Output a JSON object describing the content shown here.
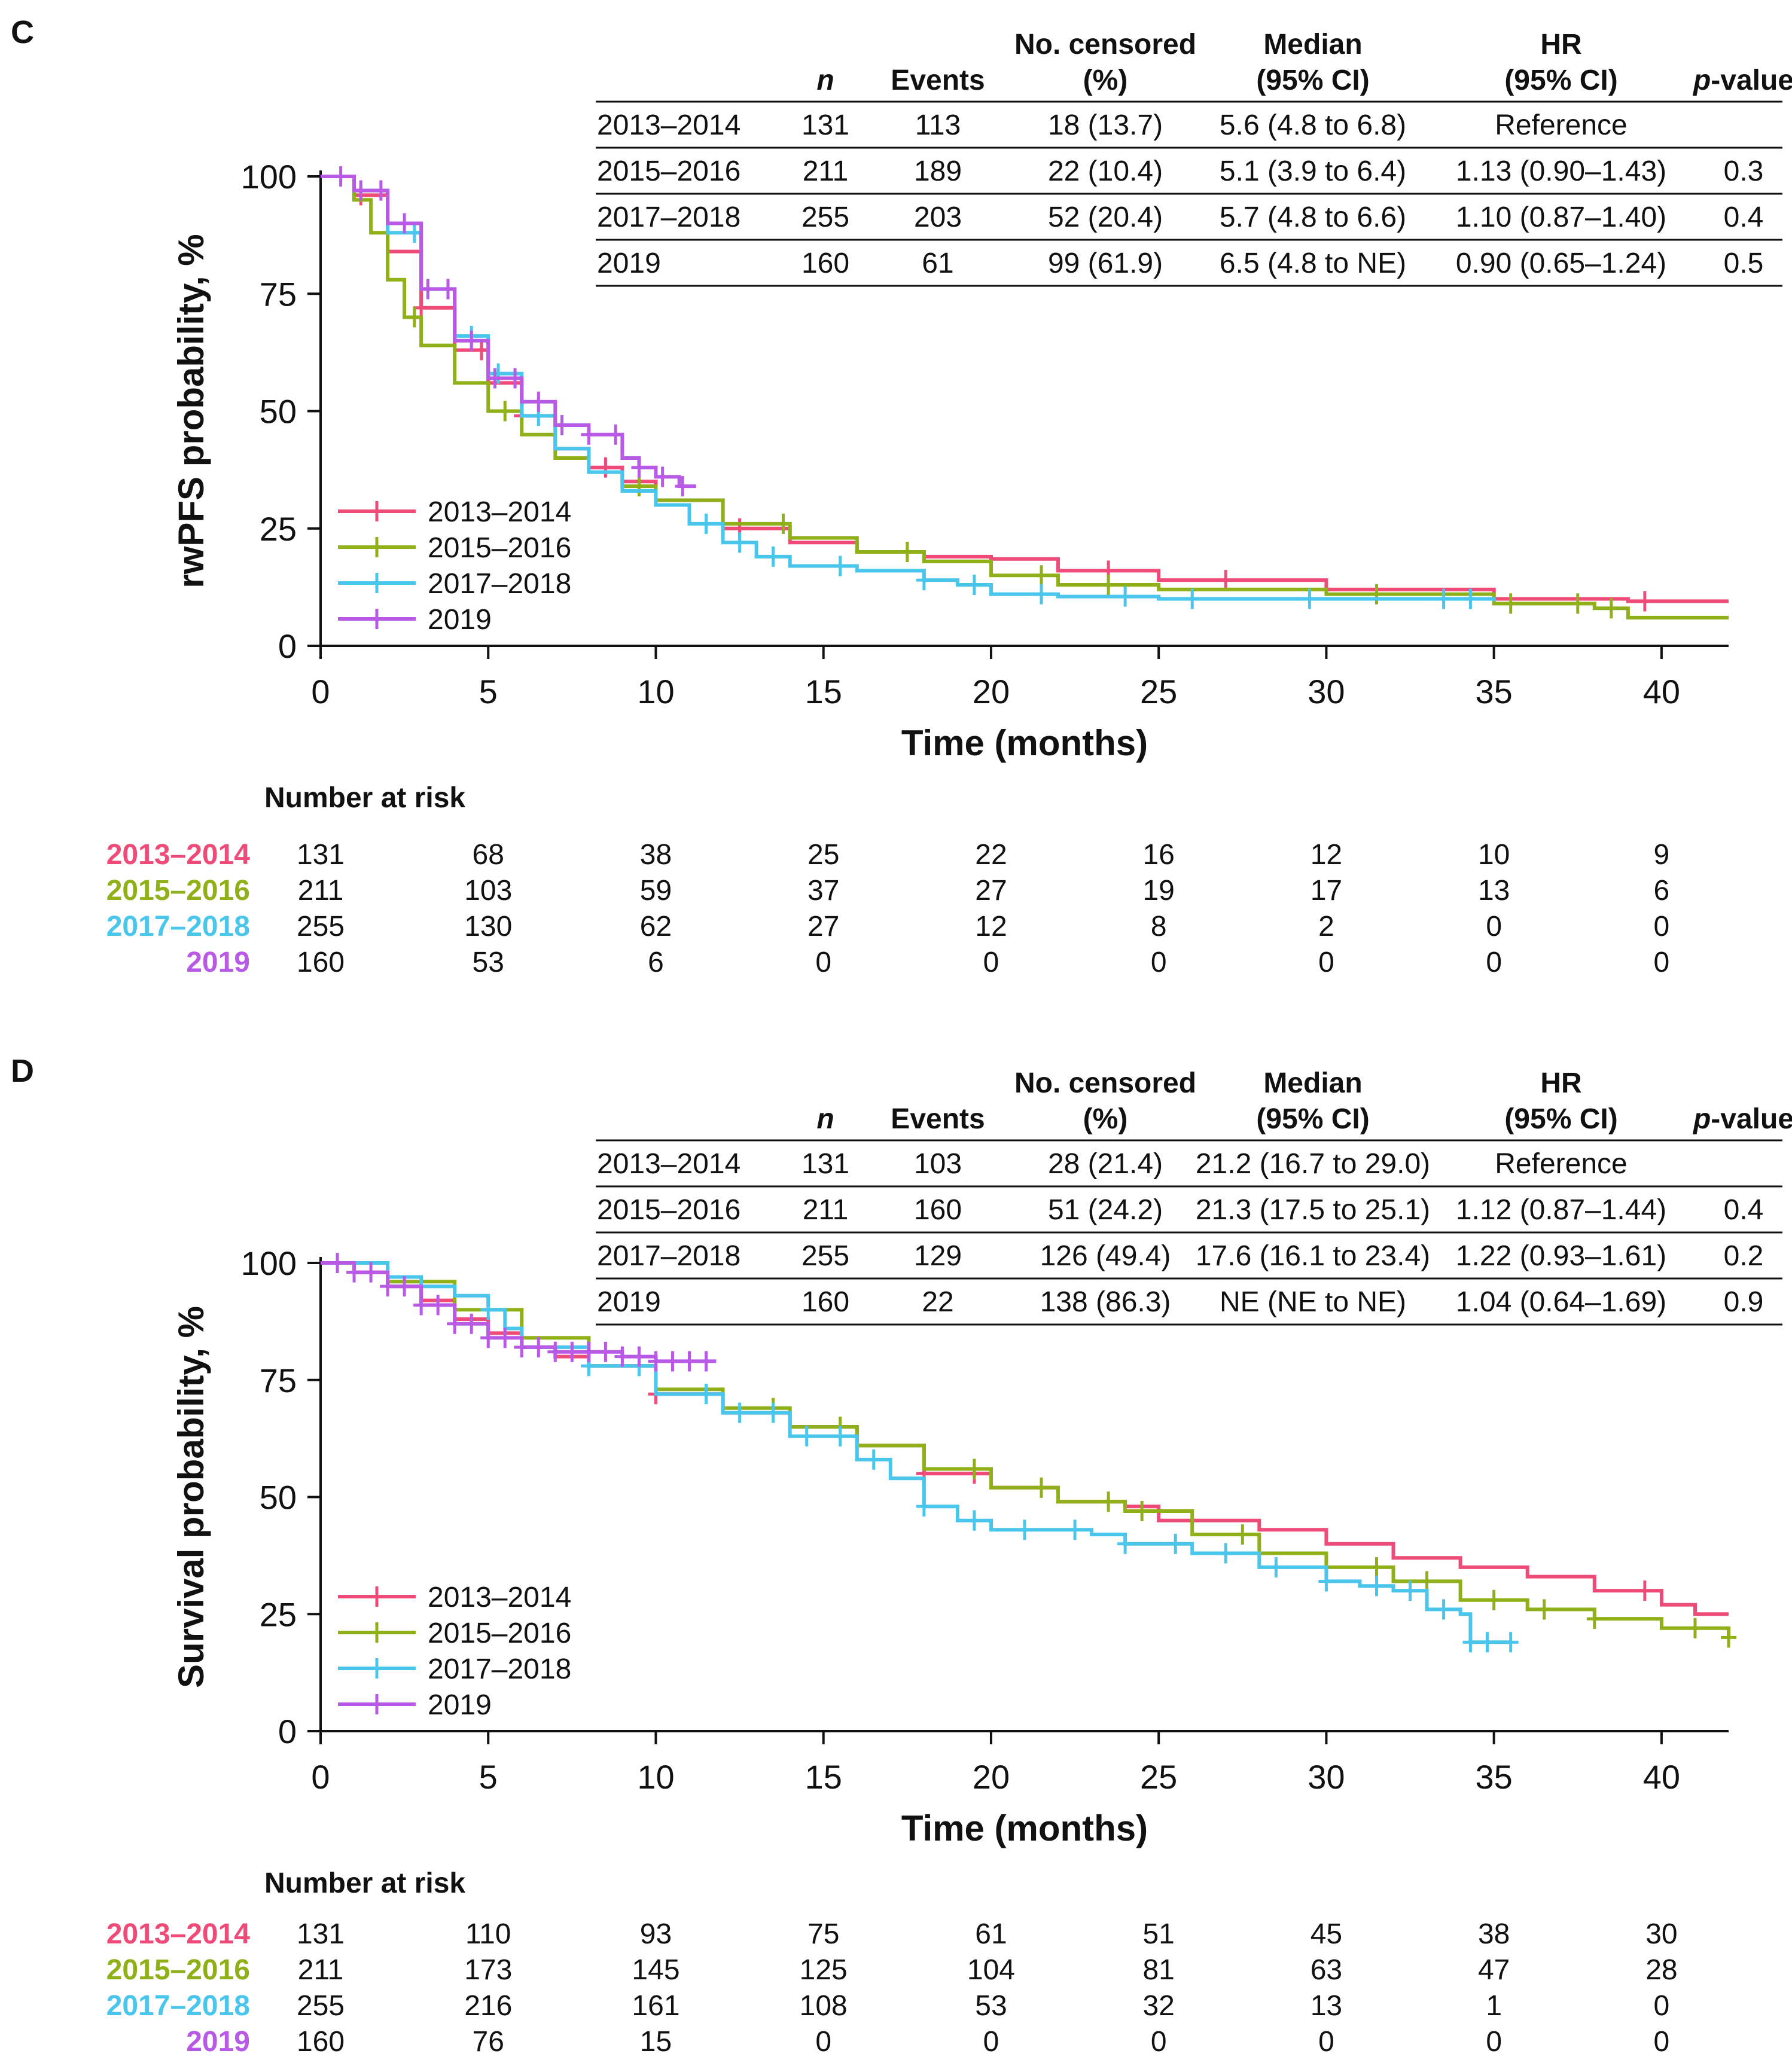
{
  "colors": {
    "2013–2014": "#ef4b78",
    "2015–2016": "#8fb019",
    "2017–2018": "#4ac6ec",
    "2019": "#b85ae6"
  },
  "chart_data": [
    {
      "type": "line",
      "subtype": "kaplan-meier",
      "panel_label": "C",
      "xlabel": "Time (months)",
      "ylabel": "rwPFS probability, %",
      "xlim": [
        0,
        42
      ],
      "ylim": [
        0,
        100
      ],
      "xticks": [
        0,
        5,
        10,
        15,
        20,
        25,
        30,
        35,
        40
      ],
      "yticks": [
        0,
        25,
        50,
        75,
        100
      ],
      "legend": [
        "2013–2014",
        "2015–2016",
        "2017–2018",
        "2019"
      ],
      "legend_position": "bottom-left",
      "series": [
        {
          "name": "2013–2014",
          "x": [
            0,
            1,
            2,
            3,
            4,
            5,
            6,
            7,
            8,
            9,
            10,
            12,
            14,
            16,
            18,
            20,
            22,
            25,
            30,
            35,
            39,
            42
          ],
          "y": [
            100,
            96,
            84,
            72,
            63,
            56,
            49,
            42,
            38,
            35,
            31,
            25,
            22,
            20,
            19,
            18.5,
            16,
            14,
            12,
            10,
            9.5,
            9.5
          ],
          "censors": [
            1.2,
            3.0,
            4.8,
            6.0,
            8.5,
            12.5,
            23.5,
            27,
            39.5
          ]
        },
        {
          "name": "2015–2016",
          "x": [
            0,
            1,
            1.5,
            2,
            2.5,
            3,
            4,
            5,
            6,
            7,
            8,
            9,
            10,
            12,
            14,
            16,
            18,
            20,
            22,
            25,
            30,
            35,
            38,
            39,
            42
          ],
          "y": [
            100,
            95,
            88,
            78,
            70,
            64,
            56,
            50,
            45,
            40,
            37,
            34,
            31,
            26,
            23,
            20,
            18,
            15,
            13,
            12,
            11,
            9,
            8,
            6,
            6
          ],
          "censors": [
            2.8,
            5.5,
            9.5,
            13.8,
            17.5,
            21.5,
            23.5,
            31.5,
            35.5,
            37.5,
            38.5
          ]
        },
        {
          "name": "2017–2018",
          "x": [
            0,
            1,
            2,
            3,
            4,
            5,
            6,
            7,
            8,
            9,
            10,
            11,
            12,
            13,
            14,
            16,
            18,
            19,
            20,
            22,
            25,
            30,
            35
          ],
          "y": [
            100,
            97,
            88,
            76,
            66,
            58,
            49,
            42,
            37,
            33,
            30,
            26,
            22,
            19,
            17,
            16,
            14,
            13,
            11,
            10.5,
            10,
            10,
            9.5
          ],
          "censors": [
            2.8,
            3.8,
            4.5,
            5.3,
            6.5,
            11.5,
            12.5,
            13.5,
            15.5,
            18,
            19.5,
            21.5,
            24,
            26,
            29.5,
            33.5,
            34.3
          ]
        },
        {
          "name": "2019",
          "x": [
            0,
            1,
            2,
            3,
            4,
            5,
            6,
            7,
            8,
            9,
            9.5,
            10,
            10.7,
            11.2
          ],
          "y": [
            100,
            97,
            90,
            76,
            65,
            57,
            52,
            47,
            45,
            40,
            38,
            36,
            34,
            34
          ],
          "censors": [
            0.6,
            1.2,
            1.8,
            2.5,
            3.2,
            3.8,
            4.5,
            5.2,
            5.8,
            6.5,
            7.2,
            8,
            8.8,
            9.5,
            10.2,
            10.8
          ]
        }
      ],
      "table": {
        "headers": [
          "",
          "n",
          "Events",
          "No. censored\n(%)",
          "Median\n(95% CI)",
          "HR\n(95% CI)",
          "p-value"
        ],
        "rows": [
          [
            "2013–2014",
            "131",
            "113",
            "18 (13.7)",
            "5.6 (4.8 to 6.8)",
            "Reference",
            ""
          ],
          [
            "2015–2016",
            "211",
            "189",
            "22 (10.4)",
            "5.1 (3.9 to 6.4)",
            "1.13 (0.90–1.43)",
            "0.3"
          ],
          [
            "2017–2018",
            "255",
            "203",
            "52 (20.4)",
            "5.7 (4.8 to 6.6)",
            "1.10 (0.87–1.40)",
            "0.4"
          ],
          [
            "2019",
            "160",
            "61",
            "99 (61.9)",
            "6.5 (4.8 to NE)",
            "0.90 (0.65–1.24)",
            "0.5"
          ]
        ]
      },
      "at_risk": {
        "title": "Number at risk",
        "times": [
          0,
          5,
          10,
          15,
          20,
          25,
          30,
          35,
          40
        ],
        "rows": [
          {
            "name": "2013–2014",
            "values": [
              131,
              68,
              38,
              25,
              22,
              16,
              12,
              10,
              9
            ]
          },
          {
            "name": "2015–2016",
            "values": [
              211,
              103,
              59,
              37,
              27,
              19,
              17,
              13,
              6
            ]
          },
          {
            "name": "2017–2018",
            "values": [
              255,
              130,
              62,
              27,
              12,
              8,
              2,
              0,
              0
            ]
          },
          {
            "name": "2019",
            "values": [
              160,
              53,
              6,
              0,
              0,
              0,
              0,
              0,
              0
            ]
          }
        ]
      }
    },
    {
      "type": "line",
      "subtype": "kaplan-meier",
      "panel_label": "D",
      "xlabel": "Time (months)",
      "ylabel": "Survival probability, %",
      "xlim": [
        0,
        42
      ],
      "ylim": [
        0,
        100
      ],
      "xticks": [
        0,
        5,
        10,
        15,
        20,
        25,
        30,
        35,
        40
      ],
      "yticks": [
        0,
        25,
        50,
        75,
        100
      ],
      "legend": [
        "2013–2014",
        "2015–2016",
        "2017–2018",
        "2019"
      ],
      "legend_position": "bottom-left",
      "series": [
        {
          "name": "2013–2014",
          "x": [
            0,
            1,
            2,
            3,
            4,
            5,
            6,
            7,
            8,
            10,
            12,
            14,
            16,
            18,
            20,
            22,
            24,
            25,
            28,
            30,
            32,
            34,
            36,
            38,
            40,
            41,
            42
          ],
          "y": [
            100,
            98,
            95,
            92,
            88,
            85,
            82,
            80,
            78,
            72,
            68,
            65,
            61,
            55,
            52,
            49,
            48,
            45,
            43,
            40,
            37,
            35,
            33,
            30,
            27,
            25,
            25
          ],
          "censors": [
            10,
            18,
            19.5,
            39.5
          ]
        },
        {
          "name": "2015–2016",
          "x": [
            0,
            2,
            4,
            6,
            8,
            10,
            12,
            14,
            16,
            18,
            20,
            22,
            24,
            26,
            28,
            30,
            32,
            34,
            36,
            38,
            40,
            42
          ],
          "y": [
            100,
            96,
            90,
            84,
            78,
            73,
            69,
            65,
            61,
            56,
            52,
            49,
            47,
            42,
            38,
            35,
            32,
            28,
            26,
            24,
            22,
            20
          ],
          "censors": [
            13.5,
            15.5,
            19.5,
            21.5,
            23.5,
            24.5,
            27.5,
            31.5,
            33,
            35,
            36.5,
            38,
            41,
            42
          ]
        },
        {
          "name": "2017–2018",
          "x": [
            0,
            2,
            3,
            4,
            5,
            5.5,
            6,
            8,
            10,
            12,
            14,
            16,
            17,
            18,
            19,
            20,
            23,
            24,
            26,
            28,
            30,
            31,
            32,
            33,
            34,
            34.3,
            35.5
          ],
          "y": [
            100,
            97,
            95,
            93,
            90,
            86,
            82,
            78,
            72,
            68,
            63,
            58,
            54,
            48,
            45,
            43,
            42,
            40,
            38,
            35,
            32,
            31,
            30,
            26,
            25,
            19,
            19
          ],
          "censors": [
            3,
            5,
            8,
            9.5,
            11.5,
            12.5,
            13.5,
            14.5,
            15.5,
            16.5,
            18,
            19.5,
            21,
            22.5,
            24,
            25.5,
            27,
            28.5,
            30,
            31.5,
            32.5,
            33.5,
            34.3,
            34.8,
            35.5
          ]
        },
        {
          "name": "2019",
          "x": [
            0,
            1,
            2,
            3,
            4,
            5,
            6,
            7,
            8,
            9,
            10,
            11,
            11.8
          ],
          "y": [
            100,
            98,
            95,
            91,
            87,
            84,
            82,
            81,
            81,
            80,
            79,
            79,
            79
          ],
          "censors": [
            0.5,
            1,
            1.5,
            2,
            2.5,
            3,
            3.5,
            4,
            4.5,
            5,
            5.5,
            6,
            6.5,
            7,
            7.5,
            8,
            8.5,
            9,
            9.5,
            10,
            10.5,
            11,
            11.5
          ]
        }
      ],
      "table": {
        "headers": [
          "",
          "n",
          "Events",
          "No. censored\n(%)",
          "Median\n(95% CI)",
          "HR\n(95% CI)",
          "p-value"
        ],
        "rows": [
          [
            "2013–2014",
            "131",
            "103",
            "28 (21.4)",
            "21.2 (16.7 to 29.0)",
            "Reference",
            ""
          ],
          [
            "2015–2016",
            "211",
            "160",
            "51 (24.2)",
            "21.3 (17.5 to 25.1)",
            "1.12 (0.87–1.44)",
            "0.4"
          ],
          [
            "2017–2018",
            "255",
            "129",
            "126 (49.4)",
            "17.6 (16.1 to 23.4)",
            "1.22 (0.93–1.61)",
            "0.2"
          ],
          [
            "2019",
            "160",
            "22",
            "138 (86.3)",
            "NE (NE to NE)",
            "1.04 (0.64–1.69)",
            "0.9"
          ]
        ]
      },
      "at_risk": {
        "title": "Number at risk",
        "times": [
          0,
          5,
          10,
          15,
          20,
          25,
          30,
          35,
          40
        ],
        "rows": [
          {
            "name": "2013–2014",
            "values": [
              131,
              110,
              93,
              75,
              61,
              51,
              45,
              38,
              30
            ]
          },
          {
            "name": "2015–2016",
            "values": [
              211,
              173,
              145,
              125,
              104,
              81,
              63,
              47,
              28
            ]
          },
          {
            "name": "2017–2018",
            "values": [
              255,
              216,
              161,
              108,
              53,
              32,
              13,
              1,
              0
            ]
          },
          {
            "name": "2019",
            "values": [
              160,
              76,
              15,
              0,
              0,
              0,
              0,
              0,
              0
            ]
          }
        ]
      }
    }
  ]
}
